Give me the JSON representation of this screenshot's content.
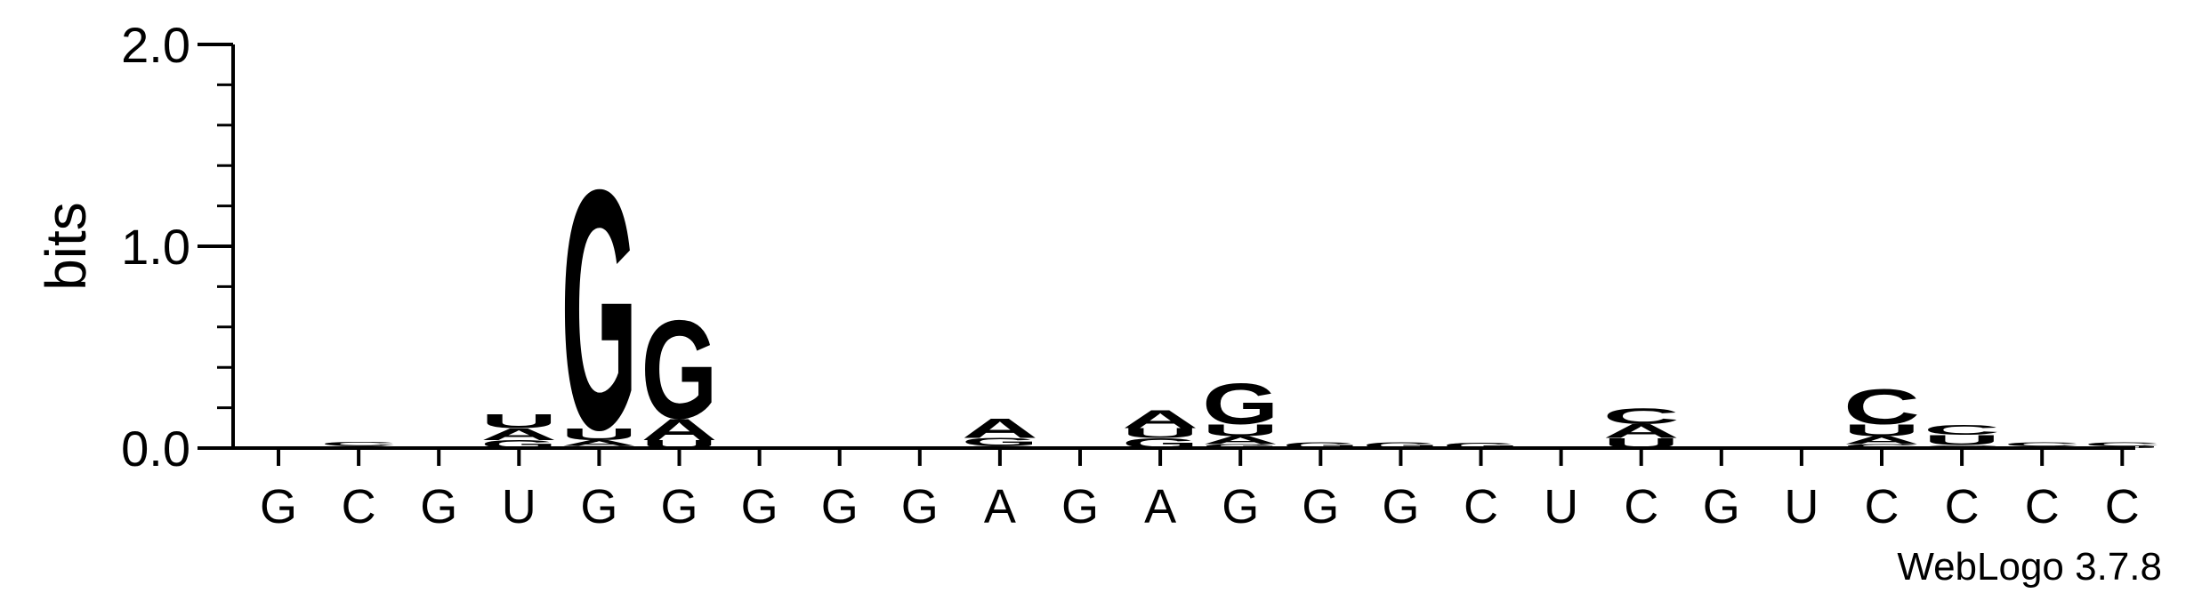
{
  "chart_data": {
    "type": "sequence_logo",
    "ylabel": "bits",
    "ylim": [
      0,
      2.0
    ],
    "yticks": [
      "0.0",
      "1.0",
      "2.0"
    ],
    "credit": "WebLogo 3.7.8",
    "colors": {
      "A": "#f68b1f",
      "U": "#f68b1f",
      "G": "#0000ff",
      "C": "#0000ff"
    },
    "positions": [
      {
        "label": "G",
        "stack": [
          [
            "G",
            0.008
          ]
        ]
      },
      {
        "label": "C",
        "stack": [
          [
            "G",
            0.01
          ],
          [
            "C",
            0.02
          ]
        ]
      },
      {
        "label": "G",
        "stack": []
      },
      {
        "label": "U",
        "stack": [
          [
            "G",
            0.04
          ],
          [
            "A",
            0.06
          ],
          [
            "U",
            0.07
          ]
        ]
      },
      {
        "label": "G",
        "stack": [
          [
            "C",
            0.01
          ],
          [
            "A",
            0.03
          ],
          [
            "U",
            0.06
          ],
          [
            "G",
            1.22
          ]
        ]
      },
      {
        "label": "G",
        "stack": [
          [
            "U",
            0.04
          ],
          [
            "A",
            0.11
          ],
          [
            "G",
            0.5
          ]
        ]
      },
      {
        "label": "G",
        "stack": []
      },
      {
        "label": "G",
        "stack": []
      },
      {
        "label": "G",
        "stack": []
      },
      {
        "label": "A",
        "stack": [
          [
            "C",
            0.01
          ],
          [
            "G",
            0.04
          ],
          [
            "A",
            0.1
          ]
        ]
      },
      {
        "label": "G",
        "stack": []
      },
      {
        "label": "A",
        "stack": [
          [
            "G",
            0.05
          ],
          [
            "U",
            0.05
          ],
          [
            "A",
            0.09
          ]
        ]
      },
      {
        "label": "G",
        "stack": [
          [
            "G",
            0.02
          ],
          [
            "A",
            0.04
          ],
          [
            "U",
            0.06
          ],
          [
            "G",
            0.21
          ]
        ]
      },
      {
        "label": "G",
        "stack": [
          [
            "G",
            0.03
          ]
        ]
      },
      {
        "label": "G",
        "stack": [
          [
            "G",
            0.03
          ]
        ]
      },
      {
        "label": "C",
        "stack": [
          [
            "G",
            0.025
          ]
        ]
      },
      {
        "label": "U",
        "stack": []
      },
      {
        "label": "C",
        "stack": [
          [
            "U",
            0.05
          ],
          [
            "A",
            0.07
          ],
          [
            "C",
            0.08
          ]
        ]
      },
      {
        "label": "G",
        "stack": []
      },
      {
        "label": "U",
        "stack": []
      },
      {
        "label": "C",
        "stack": [
          [
            "C",
            0.02
          ],
          [
            "A",
            0.04
          ],
          [
            "U",
            0.06
          ],
          [
            "C",
            0.18
          ]
        ]
      },
      {
        "label": "C",
        "stack": [
          [
            "C",
            0.015
          ],
          [
            "U",
            0.05
          ],
          [
            "C",
            0.05
          ]
        ]
      },
      {
        "label": "C",
        "stack": [
          [
            "A",
            0.008
          ],
          [
            "C",
            0.02
          ]
        ]
      },
      {
        "label": "C",
        "stack": [
          [
            "U",
            0.008
          ],
          [
            "C",
            0.02
          ]
        ]
      }
    ]
  }
}
